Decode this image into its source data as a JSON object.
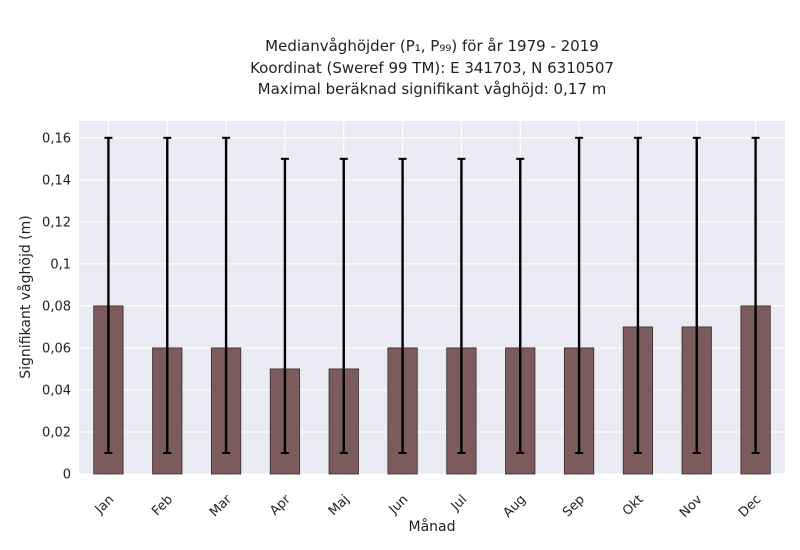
{
  "chart_data": {
    "type": "bar",
    "title_lines": [
      "Medianvåghöjder (P₁, P₉₉) för år 1979 - 2019",
      "Koordinat (Sweref 99 TM): E 341703, N 6310507",
      "Maximal beräknad signifikant våghöjd: 0,17 m"
    ],
    "xlabel": "Månad",
    "ylabel": "Signifikant våghöjd (m)",
    "categories": [
      "Jan",
      "Feb",
      "Mar",
      "Apr",
      "Maj",
      "Jun",
      "Jul",
      "Aug",
      "Sep",
      "Okt",
      "Nov",
      "Dec"
    ],
    "values": [
      0.08,
      0.06,
      0.06,
      0.05,
      0.05,
      0.06,
      0.06,
      0.06,
      0.06,
      0.07,
      0.07,
      0.08
    ],
    "error_low": [
      0.01,
      0.01,
      0.01,
      0.01,
      0.01,
      0.01,
      0.01,
      0.01,
      0.01,
      0.01,
      0.01,
      0.01
    ],
    "error_high": [
      0.16,
      0.16,
      0.16,
      0.15,
      0.15,
      0.15,
      0.15,
      0.15,
      0.16,
      0.16,
      0.16,
      0.16
    ],
    "ylim": [
      0,
      0.168
    ],
    "yticks": [
      0,
      0.02,
      0.04,
      0.06,
      0.08,
      0.1,
      0.12,
      0.14,
      0.16
    ],
    "ytick_labels": [
      "0",
      "0,02",
      "0,04",
      "0,06",
      "0,08",
      "0,1",
      "0,12",
      "0,14",
      "0,16"
    ],
    "grid": true,
    "colors": {
      "bar_fill": "#7b5b5b",
      "bar_stroke": "#3a2a2a",
      "error_bar": "#000000",
      "plot_background": "#eaeaf2",
      "grid": "#ffffff"
    }
  }
}
